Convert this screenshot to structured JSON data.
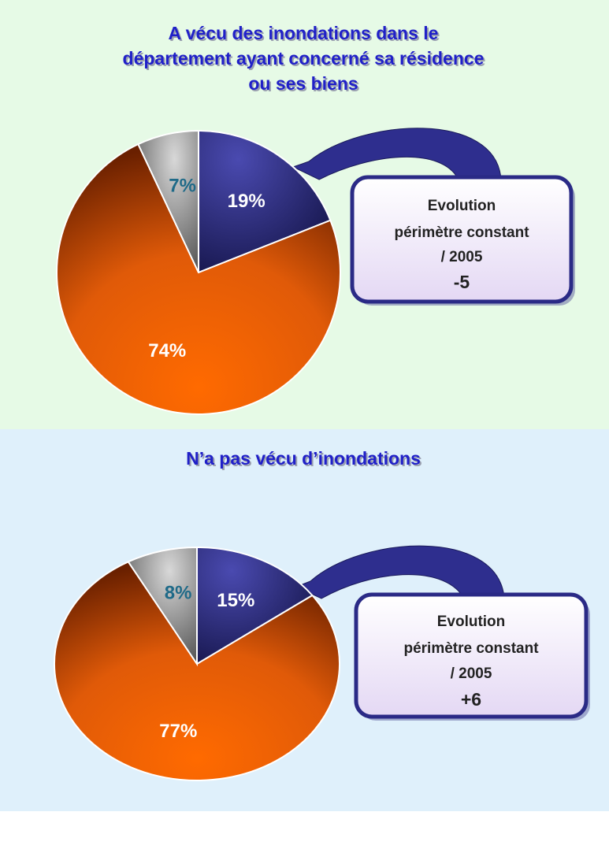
{
  "chart_data": [
    {
      "type": "pie",
      "title": [
        "A vécu des inondations dans le",
        "département ayant concerné sa résidence",
        "ou ses biens"
      ],
      "values": [
        19,
        74,
        7
      ],
      "value_labels": [
        "19%",
        "74%",
        "7%"
      ],
      "colors": [
        "#2a2a86",
        "#f06a10",
        "#a8a8a8"
      ],
      "callout": [
        "Evolution",
        "périmètre constant",
        "/ 2005"
      ],
      "evolution": "-5"
    },
    {
      "type": "pie",
      "title": [
        "N’a pas vécu d’inondations"
      ],
      "values": [
        15,
        77,
        8
      ],
      "value_labels": [
        "15%",
        "77%",
        "8%"
      ],
      "colors": [
        "#2a2a86",
        "#f06a10",
        "#a8a8a8"
      ],
      "callout": [
        "Evolution",
        "périmètre constant",
        "/ 2005"
      ],
      "evolution": "+6"
    }
  ]
}
